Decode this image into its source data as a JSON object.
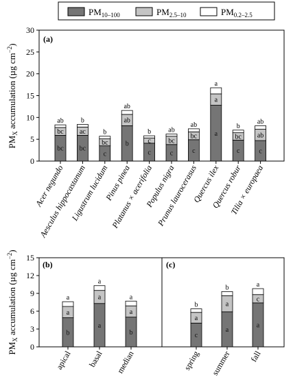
{
  "colors": {
    "PM10_100": "#757575",
    "PM2_5_10": "#c4c4c4",
    "PM0_2_2_5": "#ffffff",
    "stroke": "#000000"
  },
  "legend": {
    "items": [
      {
        "key": "PM10_100",
        "base": "PM",
        "sub": "10–100"
      },
      {
        "key": "PM2_5_10",
        "base": "PM",
        "sub": "2.5–10"
      },
      {
        "key": "PM0_2_2_5",
        "base": "PM",
        "sub": "0.2–2.5"
      }
    ]
  },
  "chart_data": [
    {
      "type": "bar",
      "stacked": true,
      "panel_label": "(a)",
      "ylabel": {
        "base": "PM",
        "sub": "X",
        "rest": " accumulation (µg cm",
        "sup": "−2",
        "end": ")"
      },
      "ylim": [
        0,
        30
      ],
      "yticks": [
        0,
        5,
        10,
        15,
        20,
        25,
        30
      ],
      "categories": [
        "Acer negundo",
        "Aesculus hippocastanum",
        "Ligustrum lucidum",
        "Pinus pinea",
        "Platanus × acerifolia",
        "Populus nigra",
        "Prunus laurocerasus",
        "Quercus ilex",
        "Quercus robur",
        "Tilia × europaea"
      ],
      "series": [
        {
          "key": "PM10_100",
          "values": [
            5.9,
            5.9,
            3.5,
            8.1,
            4.1,
            3.8,
            4.9,
            12.8,
            4.8,
            4.7
          ],
          "letters": [
            "bc",
            "bc",
            "c",
            "b",
            "c",
            "c",
            "c",
            "a",
            "c",
            "c"
          ]
        },
        {
          "key": "PM2_5_10",
          "values": [
            1.8,
            1.9,
            1.6,
            2.6,
            1.2,
            1.9,
            1.8,
            2.6,
            1.7,
            2.6
          ],
          "letters": [
            "bc",
            "ac",
            "bc",
            "ab",
            "c",
            "bc",
            "bc",
            "a",
            "bc",
            "ab"
          ]
        },
        {
          "key": "PM0_2_2_5",
          "values": [
            0.6,
            0.6,
            0.6,
            0.9,
            0.5,
            0.5,
            0.7,
            1.4,
            0.6,
            0.8
          ],
          "letters": [
            "ab",
            "b",
            "b",
            "ab",
            "b",
            "ab",
            "ab",
            "a",
            "b",
            "ab"
          ]
        }
      ]
    },
    {
      "type": "bar",
      "stacked": true,
      "panel_label": "(b)",
      "ylabel": {
        "base": "PM",
        "sub": "X",
        "rest": " accumulation (µg cm",
        "sup": "−2",
        "end": ")"
      },
      "ylim": [
        0,
        15
      ],
      "yticks": [
        0,
        3,
        6,
        9,
        12,
        15
      ],
      "categories": [
        "apical",
        "basal",
        "median"
      ],
      "series": [
        {
          "key": "PM10_100",
          "values": [
            4.9,
            7.3,
            5.0
          ],
          "letters": [
            "b",
            "a",
            "b"
          ]
        },
        {
          "key": "PM2_5_10",
          "values": [
            1.9,
            2.2,
            1.9
          ],
          "letters": [
            "a",
            "a",
            "a"
          ]
        },
        {
          "key": "PM0_2_2_5",
          "values": [
            0.8,
            0.8,
            0.8
          ],
          "letters": [
            "a",
            "a",
            "a"
          ]
        }
      ]
    },
    {
      "type": "bar",
      "stacked": true,
      "panel_label": "(c)",
      "ylim": [
        0,
        15
      ],
      "categories": [
        "spring",
        "summer",
        "fall"
      ],
      "series": [
        {
          "key": "PM10_100",
          "values": [
            4.0,
            5.9,
            7.4
          ],
          "letters": [
            "c",
            "a",
            "a"
          ]
        },
        {
          "key": "PM2_5_10",
          "values": [
            1.8,
            2.7,
            1.4
          ],
          "letters": [
            "a",
            "a",
            "c"
          ]
        },
        {
          "key": "PM0_2_2_5",
          "values": [
            0.6,
            0.7,
            1.0
          ],
          "letters": [
            "b",
            "b",
            "a"
          ]
        }
      ]
    }
  ]
}
